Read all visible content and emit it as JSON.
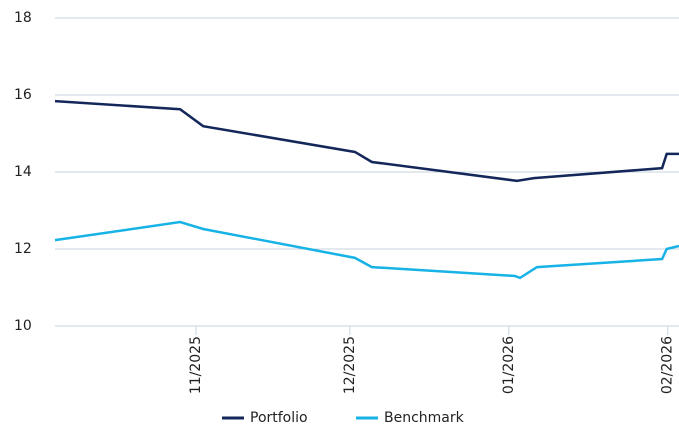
{
  "chart_data": {
    "type": "line",
    "series": [
      {
        "name": "Portfolio",
        "color": "#14275a",
        "x": [
          -27.5,
          -3.1,
          1.4,
          31,
          34.3,
          62.6,
          65.9,
          90.9,
          91.8,
          94.2
        ],
        "values": [
          15.84,
          15.63,
          15.19,
          14.52,
          14.26,
          13.77,
          13.84,
          14.1,
          14.47,
          14.47
        ]
      },
      {
        "name": "Benchmark",
        "color": "#17b2e6",
        "x": [
          -27.5,
          -3.1,
          1.4,
          31,
          34.3,
          62.2,
          63.2,
          66.5,
          90.9,
          91.8,
          94.2
        ],
        "values": [
          12.23,
          12.7,
          12.52,
          11.77,
          11.53,
          11.3,
          11.25,
          11.53,
          11.74,
          12.0,
          12.08
        ]
      }
    ],
    "xlim": [
      -27.5,
      94.2
    ],
    "xticks": [
      {
        "value": 0,
        "label": "11/2025"
      },
      {
        "value": 30,
        "label": "12/2025"
      },
      {
        "value": 61,
        "label": "01/2026"
      },
      {
        "value": 92,
        "label": "02/2026"
      }
    ],
    "ylim": [
      10,
      18
    ],
    "yticks": [
      10,
      12,
      14,
      16,
      18
    ],
    "grid": true,
    "legend": "bottom"
  }
}
